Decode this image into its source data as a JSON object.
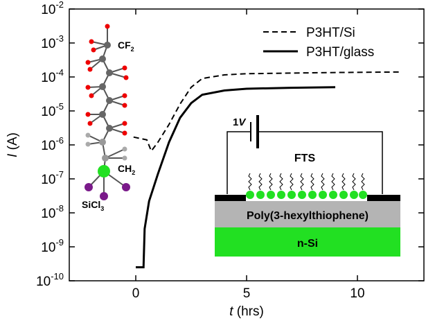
{
  "chart_data": {
    "type": "line",
    "x_label": {
      "italic": "t",
      "text": " (hrs)"
    },
    "y_label": {
      "italic": "I",
      "text": " (A)"
    },
    "xlim": [
      -3,
      13
    ],
    "xticks": [
      0,
      5,
      10
    ],
    "ylim": [
      1e-10,
      0.01
    ],
    "log_y": true,
    "yticks": [
      {
        "value": 1e-10,
        "label": "10",
        "exponent": "-10"
      },
      {
        "value": 1e-09,
        "label": "10",
        "exponent": "-9"
      },
      {
        "value": 1e-08,
        "label": "10",
        "exponent": "-8"
      },
      {
        "value": 1e-07,
        "label": "10",
        "exponent": "-7"
      },
      {
        "value": 1e-06,
        "label": "10",
        "exponent": "-6"
      },
      {
        "value": 1e-05,
        "label": "10",
        "exponent": "-5"
      },
      {
        "value": 0.0001,
        "label": "10",
        "exponent": "-4"
      },
      {
        "value": 0.001,
        "label": "10",
        "exponent": "-3"
      },
      {
        "value": 0.01,
        "label": "10",
        "exponent": "-2"
      }
    ],
    "legend": "top-right",
    "series": [
      {
        "name": "P3HT/Si",
        "color": "#000000",
        "dash": true,
        "x": [
          -0.1,
          0.3,
          0.5,
          0.7,
          1,
          1.5,
          2,
          2.5,
          3,
          4,
          5,
          7,
          9,
          12
        ],
        "values": [
          1.7e-06,
          1.5e-06,
          1.4e-06,
          6.6e-07,
          1.2e-06,
          4e-06,
          1.6e-05,
          5e-05,
          9e-05,
          0.000115,
          0.000125,
          0.00013,
          0.000135,
          0.00014
        ]
      },
      {
        "name": "P3HT/glass",
        "color": "#000000",
        "dash": false,
        "x": [
          0,
          0.35,
          0.4,
          0.6,
          1,
          1.5,
          2,
          2.5,
          3,
          4,
          5,
          7,
          9
        ],
        "values": [
          2.5e-10,
          2.5e-10,
          3.4e-09,
          2.2e-08,
          1.4e-07,
          1.2e-06,
          6.3e-06,
          1.7e-05,
          3e-05,
          4e-05,
          4.5e-05,
          4.8e-05,
          5e-05
        ]
      }
    ],
    "inset": {
      "molecule": {
        "top_group": {
          "base": "CF",
          "sub": "2"
        },
        "mid_group": {
          "base": "CH",
          "sub": "2"
        },
        "anchor": {
          "base": "SiCl",
          "sub": "3"
        }
      },
      "device": {
        "voltage": {
          "text": "1",
          "italic": "V"
        },
        "monolayer": "FTS",
        "layer1": "Poly(3-hexylthiophene)",
        "layer2": "n-Si"
      }
    }
  }
}
